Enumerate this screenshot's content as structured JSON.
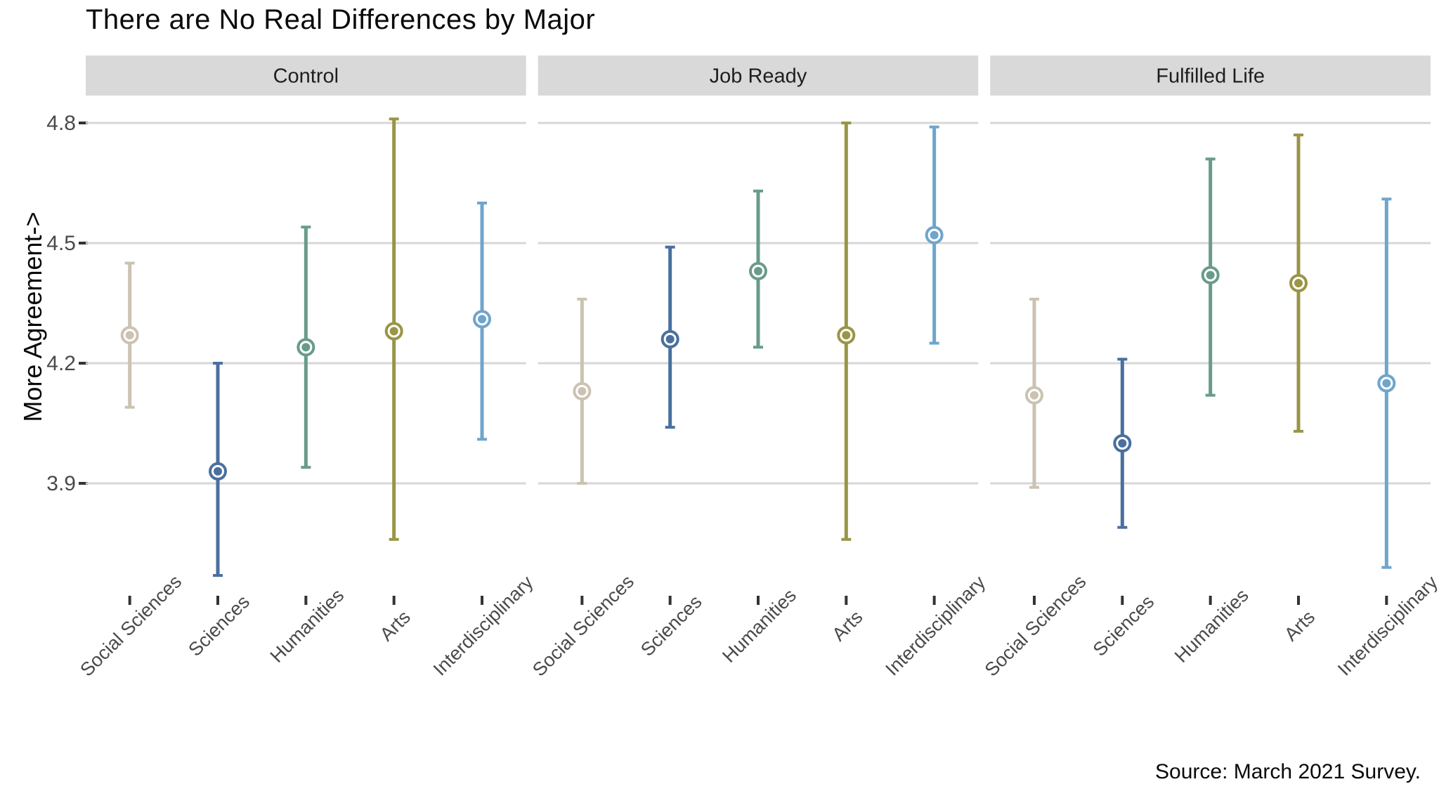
{
  "title": "There are No Real Differences by Major",
  "ylabel": "More Agreement->",
  "source": "Source: March 2021 Survey.",
  "chart_data": {
    "type": "pointrange",
    "legend": "none",
    "grid": "horizontal-only",
    "y_ticks": [
      4.8,
      4.5,
      4.2,
      3.9
    ],
    "ylim": [
      3.58,
      4.87
    ],
    "categories": [
      "Social Sciences",
      "Sciences",
      "Humanities",
      "Arts",
      "Interdisciplinary"
    ],
    "colors": {
      "Social Sciences": "#cbc3b1",
      "Sciences": "#49709e",
      "Humanities": "#699b8b",
      "Arts": "#9a9547",
      "Interdisciplinary": "#70a5cb"
    },
    "grid_color": "#d7d7d7",
    "strip_bg": "#d9d9d9",
    "strip_text_color": "#1e1e1e",
    "axis_text_color": "#4a4a4a",
    "tick_mark_color": "#333333",
    "facets": [
      {
        "label": "Control",
        "points": [
          {
            "category": "Social Sciences",
            "mean": 4.27,
            "lo": 4.09,
            "hi": 4.45
          },
          {
            "category": "Sciences",
            "mean": 3.93,
            "lo": 3.67,
            "hi": 4.2
          },
          {
            "category": "Humanities",
            "mean": 4.24,
            "lo": 3.94,
            "hi": 4.54
          },
          {
            "category": "Arts",
            "mean": 4.28,
            "lo": 3.76,
            "hi": 4.81
          },
          {
            "category": "Interdisciplinary",
            "mean": 4.31,
            "lo": 4.01,
            "hi": 4.6
          }
        ]
      },
      {
        "label": "Job Ready",
        "points": [
          {
            "category": "Social Sciences",
            "mean": 4.13,
            "lo": 3.9,
            "hi": 4.36
          },
          {
            "category": "Sciences",
            "mean": 4.26,
            "lo": 4.04,
            "hi": 4.49
          },
          {
            "category": "Humanities",
            "mean": 4.43,
            "lo": 4.24,
            "hi": 4.63
          },
          {
            "category": "Arts",
            "mean": 4.27,
            "lo": 3.76,
            "hi": 4.8
          },
          {
            "category": "Interdisciplinary",
            "mean": 4.52,
            "lo": 4.25,
            "hi": 4.79
          }
        ]
      },
      {
        "label": "Fulfilled Life",
        "points": [
          {
            "category": "Social Sciences",
            "mean": 4.12,
            "lo": 3.89,
            "hi": 4.36
          },
          {
            "category": "Sciences",
            "mean": 4.0,
            "lo": 3.79,
            "hi": 4.21
          },
          {
            "category": "Humanities",
            "mean": 4.42,
            "lo": 4.12,
            "hi": 4.71
          },
          {
            "category": "Arts",
            "mean": 4.4,
            "lo": 4.03,
            "hi": 4.77
          },
          {
            "category": "Interdisciplinary",
            "mean": 4.15,
            "lo": 3.69,
            "hi": 4.61
          }
        ]
      }
    ]
  }
}
